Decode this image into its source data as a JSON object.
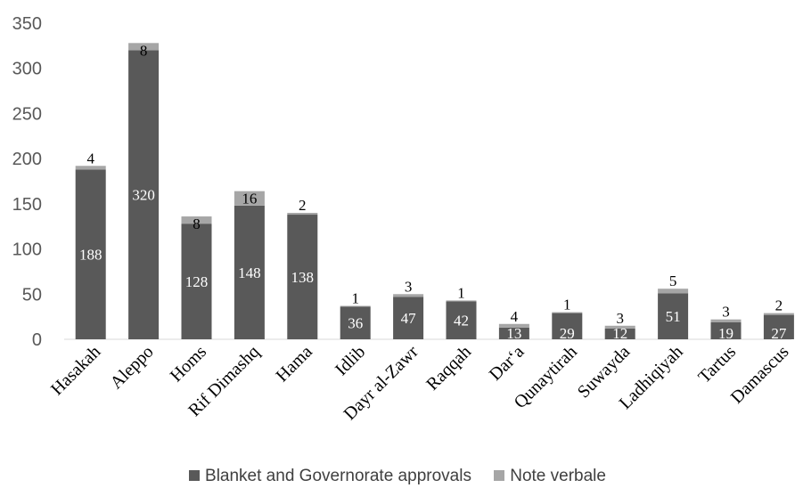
{
  "chart_data": {
    "type": "bar",
    "stacked": true,
    "categories": [
      "Hasakah",
      "Aleppo",
      "Homs",
      "Rif Dimashq",
      "Hama",
      "Idlib",
      "Dayr al-Zawr",
      "Raqqah",
      "Dar‘a",
      "Qunaytirah",
      "Suwayda",
      "Ladhiqiyah",
      "Tartus",
      "Damascus"
    ],
    "series": [
      {
        "name": "Blanket and Governorate approvals",
        "color": "#595959",
        "values": [
          188,
          320,
          128,
          148,
          138,
          36,
          47,
          42,
          13,
          29,
          12,
          51,
          19,
          27
        ]
      },
      {
        "name": "Note verbale",
        "color": "#a6a6a6",
        "values": [
          4,
          8,
          8,
          16,
          2,
          1,
          3,
          1,
          4,
          1,
          3,
          5,
          3,
          2
        ]
      }
    ],
    "ylim": [
      0,
      350
    ],
    "yticks": [
      "0",
      "50",
      "100",
      "150",
      "200",
      "250",
      "300",
      "350"
    ],
    "grid": false,
    "legend_position": "bottom"
  }
}
